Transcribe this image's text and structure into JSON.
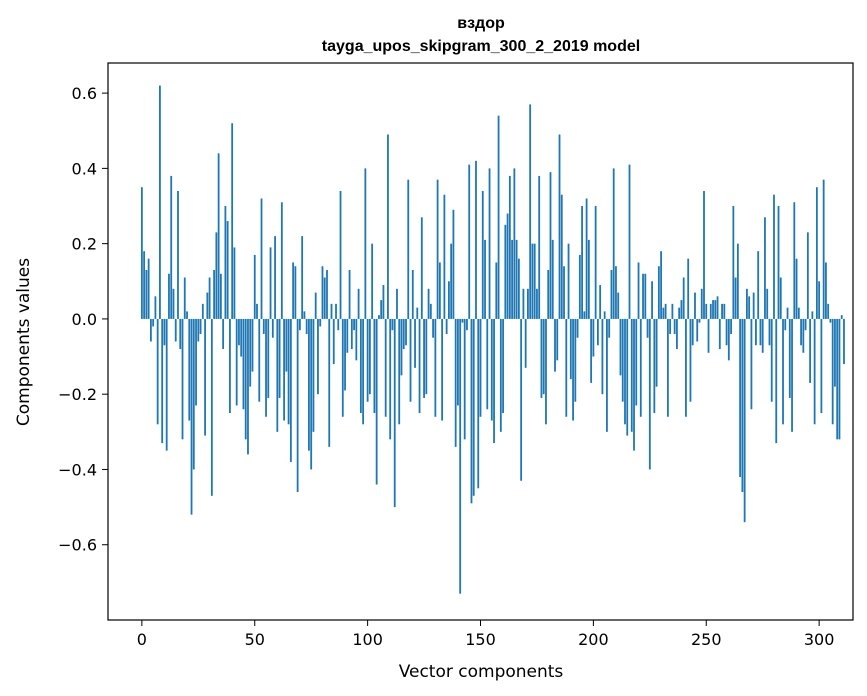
{
  "chart_data": {
    "type": "bar",
    "title": "вздор",
    "subtitle": "tayga_upos_skipgram_300_2_2019 model",
    "xlabel": "Vector components",
    "ylabel": "Components values",
    "xlim": [
      -15,
      315
    ],
    "ylim": [
      -0.8,
      0.68
    ],
    "xticks": [
      0,
      50,
      100,
      150,
      200,
      250,
      300
    ],
    "yticks": [
      -0.6,
      -0.4,
      -0.2,
      0.0,
      0.2,
      0.4,
      0.6
    ],
    "ytick_labels": [
      "−0.6",
      "−0.4",
      "−0.2",
      "0.0",
      "0.2",
      "0.4",
      "0.6"
    ],
    "bar_color": "#1f77b4",
    "values": [
      0.35,
      0.18,
      0.13,
      0.16,
      -0.06,
      -0.02,
      0.06,
      -0.28,
      0.62,
      -0.33,
      -0.07,
      -0.35,
      0.12,
      0.38,
      0.08,
      -0.06,
      0.34,
      -0.08,
      -0.32,
      0.11,
      0.02,
      -0.27,
      -0.52,
      -0.4,
      -0.23,
      -0.06,
      -0.04,
      0.04,
      -0.31,
      0.07,
      0.11,
      -0.47,
      0.13,
      0.23,
      0.44,
      0.12,
      -0.08,
      0.3,
      0.26,
      -0.25,
      0.52,
      0.19,
      -0.23,
      -0.07,
      -0.1,
      -0.24,
      -0.32,
      -0.36,
      -0.18,
      -0.14,
      0.17,
      0.04,
      -0.22,
      0.32,
      -0.04,
      -0.26,
      -0.21,
      0.19,
      -0.05,
      0.22,
      -0.3,
      -0.21,
      0.31,
      -0.27,
      -0.14,
      -0.28,
      -0.38,
      0.15,
      0.14,
      -0.46,
      -0.03,
      0.22,
      0.02,
      -0.04,
      -0.35,
      -0.4,
      -0.3,
      0.07,
      -0.2,
      -0.02,
      0.14,
      0.11,
      0.13,
      -0.34,
      0.04,
      -0.12,
      0.04,
      -0.03,
      0.34,
      -0.26,
      -0.19,
      -0.09,
      0.13,
      -0.08,
      -0.03,
      -0.11,
      0.08,
      -0.25,
      -0.28,
      0.4,
      -0.22,
      -0.2,
      0.2,
      -0.25,
      -0.44,
      0.01,
      0.05,
      0.09,
      -0.26,
      0.49,
      -0.32,
      -0.03,
      -0.5,
      0.08,
      -0.28,
      -0.15,
      -0.08,
      -0.07,
      0.37,
      -0.22,
      0.13,
      -0.13,
      0.03,
      -0.25,
      0.27,
      -0.21,
      -0.2,
      0.08,
      0.04,
      -0.05,
      -0.26,
      0.37,
      0.15,
      -0.27,
      0.33,
      -0.04,
      0.1,
      0.2,
      0.29,
      -0.34,
      -0.23,
      -0.73,
      -0.01,
      -0.32,
      -0.03,
      0.41,
      -0.49,
      -0.47,
      0.42,
      -0.45,
      -0.26,
      0.34,
      0.21,
      -0.24,
      0.4,
      -0.27,
      -0.33,
      0.15,
      0.54,
      -0.3,
      -0.25,
      0.25,
      0.28,
      0.38,
      0.21,
      0.4,
      0.21,
      0.16,
      -0.43,
      0.08,
      -0.13,
      0.08,
      0.57,
      0.2,
      0.2,
      0.08,
      0.38,
      -0.21,
      -0.2,
      -0.28,
      0.13,
      0.39,
      0.21,
      -0.14,
      -0.11,
      0.49,
      0.33,
      0.14,
      -0.26,
      0.2,
      -0.16,
      -0.27,
      -0.22,
      -0.05,
      0.17,
      0.3,
      0.02,
      0.32,
      0.21,
      -0.17,
      -0.1,
      0.3,
      -0.07,
      0.09,
      -0.2,
      0.02,
      -0.3,
      -0.05,
      0.13,
      0.4,
      0.14,
      0.07,
      -0.15,
      -0.22,
      -0.28,
      -0.31,
      0.41,
      -0.3,
      -0.35,
      -0.23,
      0.15,
      -0.26,
      0.12,
      0.12,
      -0.05,
      -0.4,
      0.1,
      -0.25,
      -0.18,
      0.14,
      0.18,
      0.03,
      0.04,
      -0.26,
      -0.04,
      0.04,
      -0.04,
      -0.08,
      0.03,
      0.05,
      0.11,
      -0.26,
      0.16,
      -0.22,
      -0.07,
      0.07,
      -0.06,
      -0.01,
      0.08,
      0.34,
      0.04,
      -0.09,
      0.04,
      0.05,
      0.05,
      0.06,
      -0.08,
      0.04,
      0.04,
      -0.07,
      -0.11,
      -0.04,
      0.3,
      0.11,
      0.2,
      -0.42,
      -0.46,
      -0.54,
      0.08,
      0.06,
      -0.24,
      0.07,
      -0.07,
      0.18,
      -0.07,
      -0.09,
      0.27,
      0.08,
      -0.07,
      -0.22,
      0.33,
      -0.33,
      0.3,
      0.11,
      -0.28,
      -0.03,
      0.03,
      -0.21,
      -0.3,
      0.31,
      0.16,
      0.03,
      -0.07,
      -0.09,
      -0.03,
      0.23,
      -0.17,
      0.02,
      -0.28,
      0.35,
      0.1,
      -0.25,
      0.37,
      0.15,
      0.04,
      -0.01,
      -0.28,
      -0.18,
      -0.32,
      -0.32,
      0.01,
      -0.12
    ]
  }
}
